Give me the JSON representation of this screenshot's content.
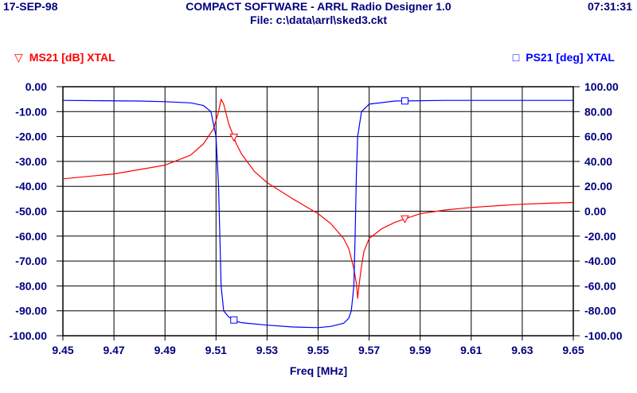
{
  "header": {
    "date": "17-SEP-98",
    "time": "07:31:31",
    "title": "COMPACT SOFTWARE - ARRL Radio Designer 1.0",
    "file": "File: c:\\data\\arrl\\sked3.ckt"
  },
  "colors": {
    "ms21": "#ff0000",
    "ps21": "#0000ff",
    "text": "#00007f",
    "grid": "#000000"
  },
  "chart_data": {
    "type": "line",
    "xlabel": "Freq [MHz]",
    "xlim": [
      9.45,
      9.65
    ],
    "x_ticks": [
      "9.45",
      "9.47",
      "9.49",
      "9.51",
      "9.53",
      "9.55",
      "9.57",
      "9.59",
      "9.61",
      "9.63",
      "9.65"
    ],
    "ylim_left": [
      -100,
      0
    ],
    "ylim_right": [
      -100,
      100
    ],
    "y_left_ticks": [
      "0.00",
      "-10.00",
      "-20.00",
      "-30.00",
      "-40.00",
      "-50.00",
      "-60.00",
      "-70.00",
      "-80.00",
      "-90.00",
      "-100.00"
    ],
    "y_right_ticks": [
      "100.00",
      "80.00",
      "60.00",
      "40.00",
      "20.00",
      "0.00",
      "-20.00",
      "-40.00",
      "-60.00",
      "-80.00",
      "-100.00"
    ],
    "grid": true,
    "series": [
      {
        "name": "MS21 [dB] XTAL",
        "axis": "left",
        "marker": "triangle-down",
        "marker_x": [
          9.517,
          9.584
        ],
        "x": [
          9.45,
          9.47,
          9.49,
          9.5,
          9.505,
          9.509,
          9.511,
          9.512,
          9.513,
          9.515,
          9.518,
          9.52,
          9.525,
          9.53,
          9.54,
          9.55,
          9.555,
          9.56,
          9.562,
          9.564,
          9.565,
          9.5655,
          9.566,
          9.567,
          9.568,
          9.57,
          9.575,
          9.58,
          9.59,
          9.6,
          9.61,
          9.62,
          9.63,
          9.64,
          9.65
        ],
        "y": [
          -37,
          -35,
          -31.5,
          -27.5,
          -23,
          -17,
          -10,
          -5,
          -7,
          -15,
          -23,
          -27,
          -34,
          -38.5,
          -45,
          -51,
          -55,
          -61,
          -65,
          -73,
          -79,
          -85,
          -80,
          -72,
          -66,
          -61,
          -57,
          -54.5,
          -51,
          -49.5,
          -48.5,
          -47.8,
          -47.2,
          -46.8,
          -46.5
        ]
      },
      {
        "name": "PS21 [deg] XTAL",
        "axis": "right",
        "marker": "square",
        "marker_x": [
          9.517,
          9.584
        ],
        "x": [
          9.45,
          9.48,
          9.49,
          9.5,
          9.505,
          9.508,
          9.51,
          9.511,
          9.512,
          9.513,
          9.515,
          9.518,
          9.52,
          9.53,
          9.54,
          9.55,
          9.555,
          9.56,
          9.562,
          9.563,
          9.564,
          9.5645,
          9.565,
          9.5655,
          9.567,
          9.57,
          9.58,
          9.6,
          9.65
        ],
        "y": [
          89,
          88.5,
          88,
          87,
          85,
          80,
          60,
          20,
          -60,
          -80,
          -85,
          -88.5,
          -89.5,
          -91.5,
          -93,
          -93.5,
          -92.5,
          -90,
          -86,
          -80,
          -60,
          -20,
          30,
          60,
          80,
          86,
          88.5,
          89,
          89
        ]
      }
    ]
  }
}
